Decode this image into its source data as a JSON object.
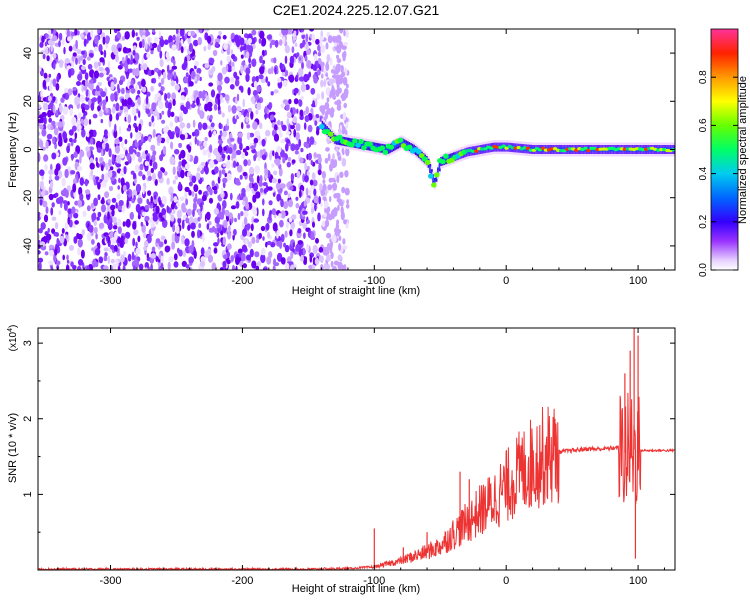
{
  "title": "C2E1.2024.225.12.07.G21",
  "chart_data": [
    {
      "type": "heatmap",
      "xlabel": "Height of straight line (km)",
      "ylabel": "Frequency (Hz)",
      "xlim": [
        -355,
        128
      ],
      "ylim": [
        -50,
        50
      ],
      "xticks": [
        -300,
        -200,
        -100,
        0,
        100
      ],
      "yticks": [
        -40,
        -20,
        0,
        20,
        40
      ],
      "colorbar": {
        "label": "Normalized spectral amplitude",
        "range": [
          0,
          1
        ],
        "ticks": [
          "0.0",
          "0.2",
          "0.4",
          "0.6",
          "0.8"
        ],
        "colors": [
          "#ffffff",
          "#cc99ff",
          "#7700dd",
          "#0000ff",
          "#00ccff",
          "#00ff44",
          "#ccff00",
          "#ffcc00",
          "#ff5500",
          "#ff0044",
          "#ff33aa"
        ]
      },
      "noise_region": {
        "x_range": [
          -355,
          -140
        ],
        "y_range": [
          -50,
          50
        ]
      },
      "signal_trace": {
        "x": [
          -140,
          -130,
          -120,
          -110,
          -100,
          -90,
          -80,
          -70,
          -60,
          -55,
          -50,
          -40,
          -30,
          -20,
          -10,
          0,
          20,
          40,
          60,
          80,
          90,
          100,
          128
        ],
        "y": [
          10,
          4,
          3,
          2,
          1,
          0,
          3,
          0,
          -5,
          -14,
          -5,
          -3,
          -1,
          0,
          1,
          1,
          0,
          0,
          0,
          0,
          0,
          0,
          0
        ],
        "max_amplitude_x_range": [
          -30,
          128
        ]
      }
    },
    {
      "type": "line",
      "xlabel": "Height of straight line (km)",
      "ylabel": "SNR (10 * v/v)",
      "yscale_label": "(x10",
      "yscale_exponent": "4",
      "xlim": [
        -355,
        128
      ],
      "ylim": [
        0,
        3.2
      ],
      "xticks": [
        -300,
        -200,
        -100,
        0,
        100
      ],
      "yticks": [
        1,
        2,
        3
      ],
      "series": [
        {
          "color": "#ee3333",
          "x": [
            -355,
            -300,
            -250,
            -200,
            -150,
            -120,
            -100,
            -90,
            -80,
            -70,
            -60,
            -50,
            -40,
            -30,
            -20,
            -10,
            0,
            10,
            20,
            30,
            40,
            50,
            60,
            70,
            80,
            85,
            90,
            95,
            100,
            105,
            110,
            128
          ],
          "y": [
            0.01,
            0.01,
            0.01,
            0.01,
            0.01,
            0.02,
            0.04,
            0.08,
            0.12,
            0.18,
            0.24,
            0.32,
            0.48,
            0.62,
            0.78,
            0.92,
            1.1,
            1.28,
            1.42,
            1.52,
            1.56,
            1.58,
            1.6,
            1.6,
            1.61,
            1.62,
            1.55,
            1.6,
            1.58,
            1.58,
            1.58,
            1.58
          ],
          "spikes": [
            [
              -100,
              0.55
            ],
            [
              -78,
              0.3
            ],
            [
              -60,
              0.5
            ],
            [
              -35,
              1.3
            ],
            [
              -28,
              1.2
            ],
            [
              -15,
              0.85
            ],
            [
              90,
              2.6
            ],
            [
              94,
              2.9
            ],
            [
              97,
              3.2
            ],
            [
              100,
              3.1
            ],
            [
              98,
              0.15
            ]
          ]
        }
      ]
    }
  ]
}
